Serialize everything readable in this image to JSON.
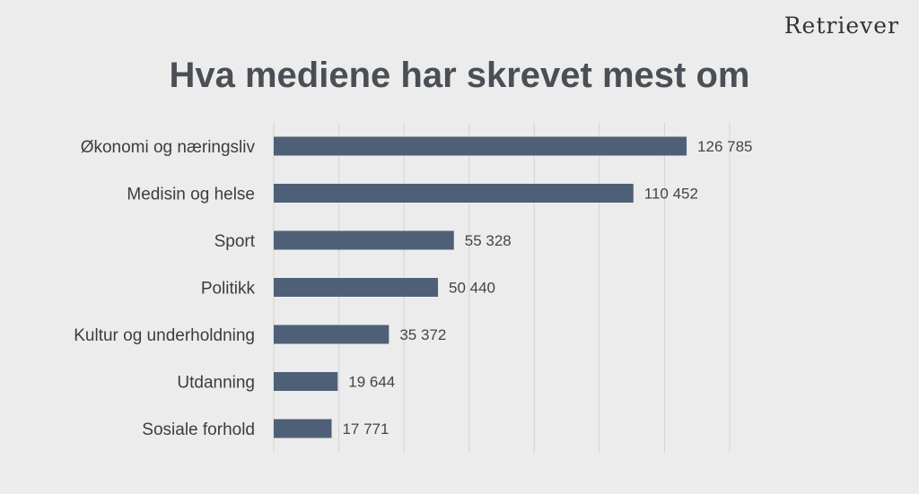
{
  "brand": {
    "logo_text": "Retriever"
  },
  "chart_data": {
    "type": "bar",
    "orientation": "horizontal",
    "title": "Hva mediene har skrevet mest om",
    "categories": [
      "Økonomi og næringsliv",
      "Medisin og helse",
      "Sport",
      "Politikk",
      "Kultur og underholdning",
      "Utdanning",
      "Sosiale forhold"
    ],
    "values": [
      126785,
      110452,
      55328,
      50440,
      35372,
      19644,
      17771
    ],
    "value_labels": [
      "126 785",
      "110 452",
      "55 328",
      "50 440",
      "35 372",
      "19 644",
      "17 771"
    ],
    "xlim": [
      0,
      140000
    ],
    "grid": true,
    "colors": {
      "bar": "#4e6077",
      "grid": "#d3d3d3"
    }
  }
}
